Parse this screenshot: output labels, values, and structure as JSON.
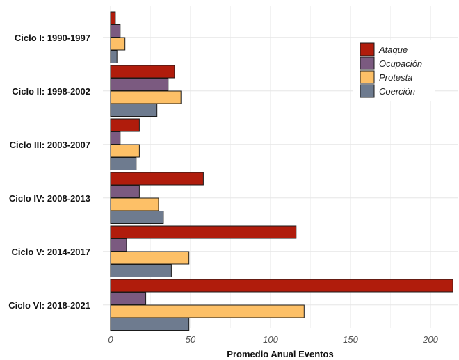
{
  "chart_data": {
    "type": "bar",
    "orientation": "horizontal",
    "categories": [
      "Ciclo I: 1990-1997",
      "Ciclo II: 1998-2002",
      "Ciclo III: 2003-2007",
      "Ciclo IV: 2008-2013",
      "Ciclo V: 2014-2017",
      "Ciclo VI: 2018-2021"
    ],
    "series": [
      {
        "name": "Ataque",
        "color": "#b01c0c",
        "values": [
          3,
          40,
          18,
          58,
          116,
          214
        ]
      },
      {
        "name": "Ocupación",
        "color": "#7b5a80",
        "values": [
          6,
          36,
          6,
          18,
          10,
          22
        ]
      },
      {
        "name": "Protesta",
        "color": "#fdc067",
        "values": [
          9,
          44,
          18,
          30,
          49,
          121
        ]
      },
      {
        "name": "Coerción",
        "color": "#6e7b8f",
        "values": [
          4,
          29,
          16,
          33,
          38,
          49
        ]
      }
    ],
    "xlabel": "Promedio Anual Eventos",
    "ylabel": "",
    "xlim": [
      0,
      218
    ],
    "xticks": [
      0,
      50,
      100,
      150,
      200
    ],
    "grid": true,
    "legend_position": "top-right"
  }
}
